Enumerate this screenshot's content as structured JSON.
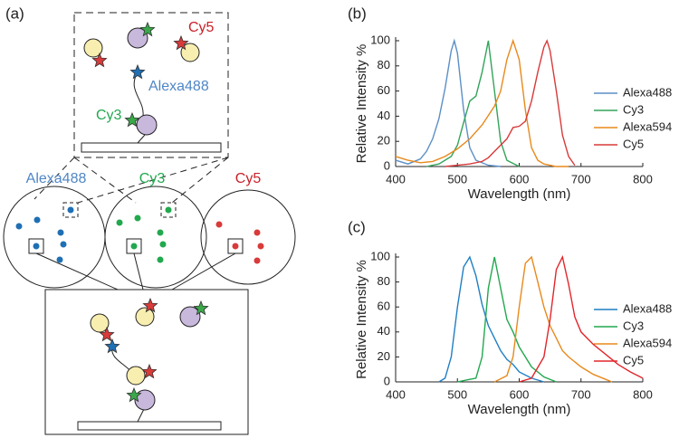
{
  "panel_labels": [
    "(a)",
    "(b)",
    "(c)"
  ],
  "diagram": {
    "top_box_labels": [
      "Cy5",
      "Alexa488",
      "Cy3"
    ],
    "channel_labels": [
      "Alexa488",
      "Cy3",
      "Cy5"
    ]
  },
  "chart_data": [
    {
      "type": "line",
      "xlabel": "Wavelength (nm)",
      "ylabel": "Relative Intensity %",
      "xlim": [
        400,
        800
      ],
      "xticks": [
        400,
        500,
        600,
        700,
        800
      ],
      "ylim": [
        0,
        100
      ],
      "yticks": [
        0,
        20,
        40,
        60,
        80,
        100
      ],
      "grid": false,
      "legend": "right",
      "series": [
        {
          "name": "Alexa488",
          "color": "#5b8fc6",
          "x": [
            400,
            420,
            440,
            450,
            460,
            470,
            480,
            490,
            495,
            500,
            510,
            520,
            530,
            550,
            570
          ],
          "values": [
            5,
            2,
            6,
            12,
            22,
            38,
            62,
            92,
            100,
            90,
            45,
            15,
            5,
            1,
            0
          ]
        },
        {
          "name": "Cy3",
          "color": "#33a35a",
          "x": [
            450,
            470,
            490,
            500,
            510,
            520,
            530,
            540,
            550,
            560,
            570,
            580,
            600
          ],
          "values": [
            0,
            2,
            8,
            17,
            35,
            52,
            56,
            75,
            100,
            60,
            20,
            5,
            0
          ]
        },
        {
          "name": "Alexa594",
          "color": "#e8891c",
          "x": [
            400,
            420,
            440,
            460,
            480,
            500,
            520,
            540,
            560,
            570,
            580,
            590,
            600,
            610,
            620,
            630,
            640,
            660,
            680
          ],
          "values": [
            8,
            5,
            3,
            4,
            8,
            14,
            22,
            33,
            48,
            60,
            85,
            100,
            85,
            45,
            15,
            5,
            2,
            0,
            0
          ]
        },
        {
          "name": "Cy5",
          "color": "#d93a3a",
          "x": [
            480,
            500,
            520,
            540,
            550,
            560,
            580,
            590,
            600,
            610,
            620,
            630,
            640,
            645,
            650,
            660,
            670,
            680,
            690
          ],
          "values": [
            0,
            1,
            2,
            4,
            7,
            12,
            22,
            31,
            32,
            36,
            52,
            75,
            95,
            100,
            92,
            60,
            25,
            8,
            1
          ]
        }
      ]
    },
    {
      "type": "line",
      "xlabel": "Wavelength (nm)",
      "ylabel": "Relative Intensity %",
      "xlim": [
        400,
        800
      ],
      "xticks": [
        400,
        500,
        600,
        700,
        800
      ],
      "ylim": [
        0,
        100
      ],
      "yticks": [
        0,
        20,
        40,
        60,
        80,
        100
      ],
      "grid": false,
      "legend": "right",
      "series": [
        {
          "name": "Alexa488",
          "color": "#1f7fc4",
          "x": [
            470,
            480,
            490,
            500,
            510,
            520,
            530,
            540,
            550,
            560,
            570,
            580,
            590,
            600,
            620,
            640
          ],
          "values": [
            0,
            3,
            20,
            60,
            92,
            100,
            85,
            62,
            45,
            35,
            25,
            18,
            14,
            8,
            3,
            0
          ]
        },
        {
          "name": "Cy3",
          "color": "#22a84e",
          "x": [
            500,
            520,
            530,
            540,
            550,
            560,
            570,
            580,
            590,
            600,
            610,
            620,
            640,
            660
          ],
          "values": [
            0,
            2,
            3,
            20,
            75,
            100,
            75,
            50,
            40,
            28,
            20,
            12,
            4,
            0
          ]
        },
        {
          "name": "Alexa594",
          "color": "#e8891c",
          "x": [
            560,
            580,
            590,
            600,
            610,
            620,
            630,
            640,
            650,
            660,
            670,
            680,
            700,
            720,
            740,
            750
          ],
          "values": [
            0,
            5,
            20,
            60,
            95,
            100,
            80,
            60,
            45,
            35,
            25,
            20,
            12,
            6,
            2,
            0
          ]
        },
        {
          "name": "Cy5",
          "color": "#e2262b",
          "x": [
            600,
            620,
            640,
            650,
            660,
            670,
            680,
            690,
            700,
            720,
            740,
            760,
            780,
            800
          ],
          "values": [
            0,
            3,
            20,
            50,
            90,
            100,
            78,
            52,
            40,
            30,
            22,
            14,
            8,
            3
          ]
        }
      ]
    }
  ]
}
